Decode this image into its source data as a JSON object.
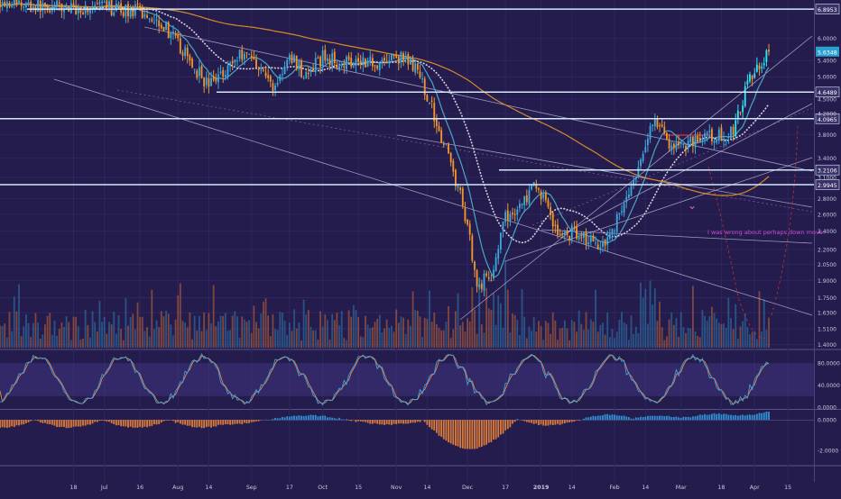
{
  "chart_data": {
    "type": "candlestick",
    "title": "",
    "time_axis": {
      "ticks": [
        "18",
        "Jul",
        "16",
        "Aug",
        "14",
        "Sep",
        "17",
        "Oct",
        "15",
        "Nov",
        "14",
        "Dec",
        "17",
        "2019",
        "14",
        "Feb",
        "14",
        "Mar",
        "18",
        "Apr",
        "15"
      ],
      "tick_days": [
        -12,
        1,
        16,
        32,
        45,
        63,
        79,
        93,
        108,
        124,
        137,
        154,
        170,
        185,
        198,
        216,
        229,
        244,
        261,
        275,
        289
      ],
      "start_day": -43,
      "end_day": 300
    },
    "price_axis": {
      "scale": "log",
      "range": [
        1.38,
        7.2
      ],
      "ticks": [
        "6.0000",
        "5.4000",
        "5.0000",
        "4.5000",
        "4.2000",
        "3.8000",
        "3.4000",
        "3.1000",
        "2.8000",
        "2.6000",
        "2.4000",
        "2.2000",
        "2.0500",
        "1.9000",
        "1.7500",
        "1.6300",
        "1.5100",
        "1.4000"
      ],
      "tick_values": [
        6.0,
        5.4,
        5.0,
        4.5,
        4.2,
        3.8,
        3.4,
        3.1,
        2.8,
        2.6,
        2.4,
        2.2,
        2.05,
        1.9,
        1.75,
        1.63,
        1.51,
        1.4
      ]
    },
    "price_keypoints": [
      {
        "day": -43,
        "price": 7.2
      },
      {
        "day": -30,
        "price": 7.0
      },
      {
        "day": -12,
        "price": 6.9
      },
      {
        "day": 1,
        "price": 6.95
      },
      {
        "day": 16,
        "price": 6.8
      },
      {
        "day": 25,
        "price": 6.5
      },
      {
        "day": 38,
        "price": 5.3
      },
      {
        "day": 45,
        "price": 4.8
      },
      {
        "day": 52,
        "price": 5.2
      },
      {
        "day": 60,
        "price": 5.65
      },
      {
        "day": 66,
        "price": 5.3
      },
      {
        "day": 72,
        "price": 4.75
      },
      {
        "day": 80,
        "price": 5.5
      },
      {
        "day": 86,
        "price": 5.0
      },
      {
        "day": 93,
        "price": 5.5
      },
      {
        "day": 100,
        "price": 5.35
      },
      {
        "day": 108,
        "price": 5.45
      },
      {
        "day": 116,
        "price": 5.35
      },
      {
        "day": 124,
        "price": 5.5
      },
      {
        "day": 131,
        "price": 5.3
      },
      {
        "day": 137,
        "price": 4.6
      },
      {
        "day": 142,
        "price": 3.9
      },
      {
        "day": 148,
        "price": 3.2
      },
      {
        "day": 154,
        "price": 2.5
      },
      {
        "day": 158,
        "price": 1.85
      },
      {
        "day": 164,
        "price": 1.95
      },
      {
        "day": 170,
        "price": 2.55
      },
      {
        "day": 176,
        "price": 2.7
      },
      {
        "day": 182,
        "price": 2.95
      },
      {
        "day": 187,
        "price": 2.8
      },
      {
        "day": 192,
        "price": 2.35
      },
      {
        "day": 200,
        "price": 2.4
      },
      {
        "day": 208,
        "price": 2.25
      },
      {
        "day": 214,
        "price": 2.35
      },
      {
        "day": 220,
        "price": 2.75
      },
      {
        "day": 226,
        "price": 3.15
      },
      {
        "day": 232,
        "price": 4.1
      },
      {
        "day": 238,
        "price": 3.7
      },
      {
        "day": 243,
        "price": 3.55
      },
      {
        "day": 250,
        "price": 3.75
      },
      {
        "day": 258,
        "price": 3.75
      },
      {
        "day": 266,
        "price": 3.85
      },
      {
        "day": 270,
        "price": 4.5
      },
      {
        "day": 275,
        "price": 5.2
      },
      {
        "day": 281,
        "price": 5.65
      }
    ],
    "moving_averages": [
      {
        "color": "#4aa6c6",
        "window": 10
      },
      {
        "color": "#d8cfe0",
        "window": 26
      },
      {
        "color": "#d48a2a",
        "window": 120
      }
    ],
    "horizontal_levels": [
      {
        "value": 6.8953,
        "label": "6.8953"
      },
      {
        "value": 4.6489,
        "label": "4.6489"
      },
      {
        "value": 4.0965,
        "label": "4.0965"
      },
      {
        "value": 3.2106,
        "label": "3.2106"
      },
      {
        "value": 2.9945,
        "label": "2.9945"
      }
    ],
    "last_price": {
      "value": 5.6348,
      "label": "5.6348"
    },
    "annotation": {
      "text": "I was wrong about perhaps down move!",
      "arrow_glyph": "⌄"
    },
    "volume": {
      "panel": "bottom of main pane",
      "up_color": "#2f7fb0",
      "down_color": "#c66a34"
    },
    "stoch_rsi": {
      "ticks": [
        "80.0000",
        "40.0000",
        "0.0000"
      ],
      "tick_values": [
        80,
        40,
        0
      ],
      "band": [
        20,
        80
      ],
      "k_color": "#3fa0d8",
      "d_color": "#e08a4a"
    },
    "macd": {
      "ticks": [
        "0.0000",
        "-2.0000"
      ],
      "tick_values": [
        0,
        -2
      ],
      "pos_color": "#2f8fd0",
      "neg_color": "#d97a3a"
    },
    "colors": {
      "background": "#241c4d",
      "up_candle": "#3ba8d8",
      "up_candle_bright": "#2de6f0",
      "down_candle": "#f0962d",
      "level_line": "#cfe8ff",
      "trend_line": "#c7c3e6",
      "axis_text": "#c8c6e0",
      "last_price_badge": "#2a9fd0",
      "annotation": "#d04fd0"
    }
  }
}
